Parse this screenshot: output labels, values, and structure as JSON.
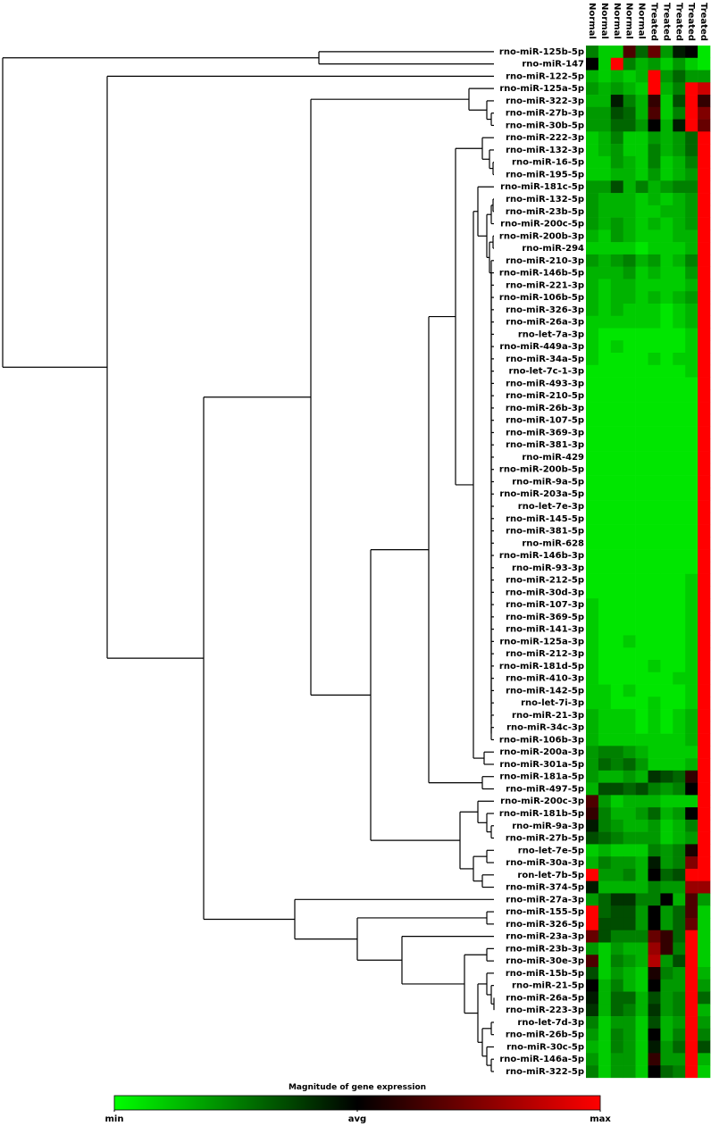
{
  "chart_data": {
    "type": "heatmap",
    "x_categories": [
      "Normal",
      "Normal",
      "Normal",
      "Normal",
      "Normal",
      "Treated",
      "Treated",
      "Treated",
      "Treated",
      "Treated"
    ],
    "y_categories": [
      "rno-miR-125b-5p",
      "rno-miR-147",
      "rno-miR-122-5p",
      "rno-miR-125a-5p",
      "rno-miR-322-3p",
      "rno-miR-27b-3p",
      "rno-miR-30b-5p",
      "rno-miR-222-3p",
      "rno-miR-132-3p",
      "rno-miR-16-5p",
      "rno-miR-195-5p",
      "rno-miR-181c-5p",
      "rno-miR-132-5p",
      "rno-miR-23b-5p",
      "rno-miR-200c-5p",
      "rno-miR-200b-3p",
      "rno-miR-294",
      "rno-miR-210-3p",
      "rno-miR-146b-5p",
      "rno-miR-221-3p",
      "rno-miR-106b-5p",
      "rno-miR-326-3p",
      "rno-miR-26a-3p",
      "rno-let-7a-3p",
      "rno-miR-449a-3p",
      "rno-miR-34a-5p",
      "rno-let-7c-1-3p",
      "rno-miR-493-3p",
      "rno-miR-210-5p",
      "rno-miR-26b-3p",
      "rno-miR-107-5p",
      "rno-miR-369-3p",
      "rno-miR-381-3p",
      "rno-miR-429",
      "rno-miR-200b-5p",
      "rno-miR-9a-5p",
      "rno-miR-203a-5p",
      "rno-let-7e-3p",
      "rno-miR-145-5p",
      "rno-miR-381-5p",
      "rno-miR-628",
      "rno-miR-146b-3p",
      "rno-miR-93-3p",
      "rno-miR-212-5p",
      "rno-miR-30d-3p",
      "rno-miR-107-3p",
      "rno-miR-369-5p",
      "rno-miR-141-3p",
      "rno-miR-125a-3p",
      "rno-miR-212-3p",
      "rno-miR-181d-5p",
      "rno-miR-410-3p",
      "rno-miR-142-5p",
      "rno-let-7i-3p",
      "rno-miR-21-3p",
      "rno-miR-34c-3p",
      "rno-miR-106b-3p",
      "rno-miR-200a-3p",
      "rno-miR-301a-5p",
      "rno-miR-181a-5p",
      "rno-miR-497-5p",
      "rno-miR-200c-3p",
      "rno-miR-181b-5p",
      "rno-miR-9a-3p",
      "rno-miR-27b-5p",
      "rno-let-7e-5p",
      "rno-miR-30a-3p",
      "ron-let-7b-5p",
      "rno-miR-374-5p",
      "rno-miR-27a-3p",
      "rno-miR-155-5p",
      "rno-miR-326-5p",
      "rno-miR-23a-3p",
      "rno-miR-23b-3p",
      "rno-miR-30e-3p",
      "rno-miR-15b-5p",
      "rno-miR-21-5p",
      "rno-miR-26a-5p",
      "rno-miR-223-3p",
      "rno-let-7d-3p",
      "rno-miR-26b-5p",
      "rno-miR-30c-5p",
      "rno-miR-146a-5p",
      "rno-miR-322-5p"
    ],
    "values": [
      [
        -0.5,
        -0.8,
        -0.8,
        0.3,
        -0.4,
        0.4,
        -0.6,
        -0.1,
        0,
        -0.9
      ],
      [
        0,
        -0.8,
        1,
        -0.5,
        -0.7,
        -0.6,
        -0.8,
        -0.6,
        -0.8,
        -0.9
      ],
      [
        -0.7,
        -0.8,
        -0.7,
        -0.8,
        -0.7,
        1,
        -0.6,
        -0.4,
        -0.6,
        -0.6
      ],
      [
        -0.6,
        -0.7,
        -0.6,
        -0.7,
        -0.8,
        1,
        -0.7,
        -0.5,
        1,
        0.8
      ],
      [
        -0.7,
        -0.7,
        -0.1,
        -0.5,
        -0.7,
        0.2,
        -0.8,
        -0.3,
        1,
        0.2
      ],
      [
        -0.6,
        -0.6,
        -0.3,
        -0.4,
        -0.7,
        0.3,
        -0.8,
        -0.5,
        1,
        0.5
      ],
      [
        -0.6,
        -0.6,
        -0.4,
        -0.4,
        -0.6,
        0,
        -0.7,
        -0.1,
        1,
        0.4
      ],
      [
        -0.8,
        -0.7,
        -0.5,
        -0.8,
        -0.8,
        -0.6,
        -0.7,
        -0.6,
        -0.4,
        1
      ],
      [
        -0.8,
        -0.7,
        -0.6,
        -0.8,
        -0.8,
        -0.5,
        -0.7,
        -0.6,
        -0.4,
        1
      ],
      [
        -0.8,
        -0.8,
        -0.6,
        -0.7,
        -0.8,
        -0.5,
        -0.8,
        -0.7,
        -0.5,
        1
      ],
      [
        -0.8,
        -0.8,
        -0.7,
        -0.7,
        -0.8,
        -0.6,
        -0.8,
        -0.7,
        -0.6,
        1
      ],
      [
        -0.6,
        -0.6,
        -0.3,
        -0.7,
        -0.5,
        -0.7,
        -0.6,
        -0.5,
        -0.5,
        1
      ],
      [
        -0.6,
        -0.7,
        -0.7,
        -0.7,
        -0.8,
        -0.7,
        -0.8,
        -0.7,
        -0.6,
        1
      ],
      [
        -0.6,
        -0.7,
        -0.7,
        -0.7,
        -0.8,
        -0.8,
        -0.7,
        -0.7,
        -0.6,
        1
      ],
      [
        -0.6,
        -0.7,
        -0.6,
        -0.7,
        -0.8,
        -0.7,
        -0.8,
        -0.7,
        -0.6,
        1
      ],
      [
        -0.7,
        -0.8,
        -0.6,
        -0.7,
        -0.8,
        -0.8,
        -0.8,
        -0.7,
        -0.7,
        1
      ],
      [
        -0.8,
        -0.8,
        -0.8,
        -0.8,
        -0.9,
        -0.8,
        -0.8,
        -0.8,
        -0.7,
        1
      ],
      [
        -0.6,
        -0.7,
        -0.6,
        -0.5,
        -0.7,
        -0.6,
        -0.8,
        -0.7,
        -0.5,
        1
      ],
      [
        -0.7,
        -0.7,
        -0.7,
        -0.6,
        -0.8,
        -0.7,
        -0.8,
        -0.8,
        -0.6,
        1
      ],
      [
        -0.7,
        -0.8,
        -0.7,
        -0.7,
        -0.8,
        -0.8,
        -0.8,
        -0.8,
        -0.7,
        1
      ],
      [
        -0.7,
        -0.8,
        -0.7,
        -0.7,
        -0.8,
        -0.7,
        -0.8,
        -0.7,
        -0.6,
        1
      ],
      [
        -0.7,
        -0.8,
        -0.7,
        -0.8,
        -0.8,
        -0.8,
        -0.9,
        -0.8,
        -0.7,
        1
      ],
      [
        -0.8,
        -0.8,
        -0.8,
        -0.8,
        -0.8,
        -0.8,
        -0.9,
        -0.8,
        -0.7,
        1
      ],
      [
        -0.8,
        -0.9,
        -0.9,
        -0.9,
        -0.9,
        -0.9,
        -0.9,
        -0.9,
        -0.8,
        1
      ],
      [
        -0.8,
        -0.9,
        -0.8,
        -0.9,
        -0.9,
        -0.9,
        -0.9,
        -0.9,
        -0.8,
        1
      ],
      [
        -0.8,
        -0.9,
        -0.9,
        -0.9,
        -0.9,
        -0.8,
        -0.9,
        -0.8,
        -0.8,
        1
      ],
      [
        -0.9,
        -0.9,
        -0.9,
        -0.9,
        -0.9,
        -0.9,
        -0.9,
        -0.9,
        -0.8,
        1
      ],
      [
        -0.9,
        -0.9,
        -0.9,
        -0.9,
        -0.9,
        -0.9,
        -0.9,
        -0.9,
        -0.9,
        1
      ],
      [
        -0.9,
        -0.9,
        -0.9,
        -0.9,
        -0.9,
        -0.9,
        -0.9,
        -0.9,
        -0.9,
        1
      ],
      [
        -0.9,
        -0.9,
        -0.9,
        -0.9,
        -0.9,
        -0.9,
        -0.9,
        -0.9,
        -0.9,
        1
      ],
      [
        -0.9,
        -0.9,
        -0.9,
        -0.9,
        -0.9,
        -0.9,
        -0.9,
        -0.9,
        -0.9,
        1
      ],
      [
        -0.9,
        -0.9,
        -0.9,
        -0.9,
        -0.9,
        -0.9,
        -0.9,
        -0.9,
        -0.9,
        1
      ],
      [
        -0.9,
        -0.9,
        -0.9,
        -0.9,
        -0.9,
        -0.9,
        -0.9,
        -0.9,
        -0.9,
        1
      ],
      [
        -0.9,
        -0.9,
        -0.9,
        -0.9,
        -0.9,
        -0.9,
        -0.9,
        -0.9,
        -0.9,
        1
      ],
      [
        -0.9,
        -0.9,
        -0.9,
        -0.9,
        -0.9,
        -0.9,
        -0.9,
        -0.9,
        -0.9,
        1
      ],
      [
        -0.9,
        -0.9,
        -0.9,
        -0.9,
        -0.9,
        -0.9,
        -0.9,
        -0.9,
        -0.9,
        1
      ],
      [
        -0.9,
        -0.9,
        -0.9,
        -0.9,
        -0.9,
        -0.9,
        -0.9,
        -0.9,
        -0.9,
        1
      ],
      [
        -0.9,
        -0.9,
        -0.9,
        -0.9,
        -0.9,
        -0.9,
        -0.9,
        -0.9,
        -0.9,
        1
      ],
      [
        -0.9,
        -0.9,
        -0.9,
        -0.9,
        -0.9,
        -0.9,
        -0.9,
        -0.9,
        -0.9,
        1
      ],
      [
        -0.9,
        -0.9,
        -0.9,
        -0.9,
        -0.9,
        -0.9,
        -0.9,
        -0.9,
        -0.9,
        1
      ],
      [
        -0.9,
        -0.9,
        -0.9,
        -0.9,
        -0.9,
        -0.9,
        -0.9,
        -0.9,
        -0.9,
        1
      ],
      [
        -0.9,
        -0.9,
        -0.9,
        -0.9,
        -0.9,
        -0.9,
        -0.9,
        -0.9,
        -0.9,
        1
      ],
      [
        -0.9,
        -0.9,
        -0.9,
        -0.9,
        -0.9,
        -0.9,
        -0.9,
        -0.9,
        -0.9,
        1
      ],
      [
        -0.9,
        -0.9,
        -0.9,
        -0.9,
        -0.9,
        -0.9,
        -0.9,
        -0.9,
        -0.8,
        1
      ],
      [
        -0.9,
        -0.9,
        -0.9,
        -0.9,
        -0.9,
        -0.9,
        -0.9,
        -0.9,
        -0.8,
        1
      ],
      [
        -0.8,
        -0.9,
        -0.9,
        -0.9,
        -0.9,
        -0.9,
        -0.9,
        -0.9,
        -0.8,
        1
      ],
      [
        -0.8,
        -0.9,
        -0.9,
        -0.9,
        -0.9,
        -0.9,
        -0.9,
        -0.9,
        -0.8,
        1
      ],
      [
        -0.8,
        -0.9,
        -0.9,
        -0.9,
        -0.9,
        -0.9,
        -0.9,
        -0.9,
        -0.8,
        1
      ],
      [
        -0.8,
        -0.9,
        -0.9,
        -0.8,
        -0.9,
        -0.9,
        -0.9,
        -0.9,
        -0.8,
        1
      ],
      [
        -0.8,
        -0.9,
        -0.9,
        -0.9,
        -0.9,
        -0.9,
        -0.9,
        -0.9,
        -0.8,
        1
      ],
      [
        -0.8,
        -0.9,
        -0.9,
        -0.9,
        -0.9,
        -0.8,
        -0.9,
        -0.9,
        -0.8,
        1
      ],
      [
        -0.8,
        -0.9,
        -0.9,
        -0.9,
        -0.9,
        -0.9,
        -0.9,
        -0.8,
        -0.8,
        1
      ],
      [
        -0.8,
        -0.8,
        -0.9,
        -0.8,
        -0.9,
        -0.9,
        -0.9,
        -0.9,
        -0.8,
        1
      ],
      [
        -0.8,
        -0.8,
        -0.9,
        -0.9,
        -0.9,
        -0.8,
        -0.9,
        -0.9,
        -0.8,
        1
      ],
      [
        -0.7,
        -0.8,
        -0.8,
        -0.8,
        -0.9,
        -0.8,
        -0.9,
        -0.8,
        -0.7,
        1
      ],
      [
        -0.7,
        -0.8,
        -0.8,
        -0.8,
        -0.9,
        -0.8,
        -0.9,
        -0.8,
        -0.7,
        1
      ],
      [
        -0.7,
        -0.8,
        -0.8,
        -0.8,
        -0.8,
        -0.8,
        -0.8,
        -0.8,
        -0.7,
        1
      ],
      [
        -0.6,
        -0.5,
        -0.5,
        -0.6,
        -0.7,
        -0.8,
        -0.8,
        -0.8,
        -0.8,
        1
      ],
      [
        -0.6,
        -0.4,
        -0.5,
        -0.4,
        -0.6,
        -0.8,
        -0.8,
        -0.8,
        -0.7,
        1
      ],
      [
        -0.6,
        -0.7,
        -0.7,
        -0.6,
        -0.7,
        -0.2,
        -0.3,
        -0.4,
        0.2,
        1
      ],
      [
        -0.7,
        -0.3,
        -0.3,
        -0.4,
        -0.3,
        -0.5,
        -0.6,
        -0.5,
        0,
        1
      ],
      [
        0.3,
        -0.6,
        -0.8,
        -0.7,
        -0.7,
        -0.7,
        -0.8,
        -0.8,
        -0.8,
        1
      ],
      [
        0.2,
        -0.5,
        -0.7,
        -0.7,
        -0.6,
        -0.4,
        -0.7,
        -0.6,
        0,
        1
      ],
      [
        -0.1,
        -0.5,
        -0.6,
        -0.7,
        -0.7,
        -0.6,
        -0.8,
        -0.7,
        -0.5,
        1
      ],
      [
        -0.3,
        -0.4,
        -0.5,
        -0.6,
        -0.6,
        -0.6,
        -0.8,
        -0.7,
        -0.6,
        1
      ],
      [
        -0.8,
        -0.7,
        -0.8,
        -0.8,
        -0.8,
        -0.5,
        -0.6,
        -0.5,
        0.1,
        1
      ],
      [
        -0.7,
        -0.5,
        -0.6,
        -0.6,
        -0.7,
        -0.1,
        -0.6,
        -0.5,
        0.5,
        1
      ],
      [
        1,
        -0.6,
        -0.6,
        -0.5,
        -0.7,
        0,
        -0.4,
        -0.3,
        1,
        1
      ],
      [
        -0.1,
        -0.7,
        -0.7,
        -0.7,
        -0.7,
        -0.5,
        -0.6,
        -0.6,
        0.6,
        0.6
      ],
      [
        -0.6,
        -0.4,
        -0.2,
        -0.2,
        -0.5,
        -0.5,
        0,
        -0.7,
        0.3,
        -0.6
      ],
      [
        1,
        -0.4,
        -0.3,
        -0.3,
        -0.6,
        0,
        -0.6,
        -0.4,
        0.3,
        -0.8
      ],
      [
        1,
        -0.3,
        -0.3,
        -0.3,
        -0.6,
        0,
        -0.6,
        -0.4,
        0.4,
        -0.8
      ],
      [
        0.4,
        -0.3,
        -0.5,
        -0.5,
        -0.5,
        0.4,
        0.2,
        -0.4,
        1,
        -0.8
      ],
      [
        -0.6,
        -0.8,
        -0.6,
        -0.7,
        -0.7,
        0.6,
        0.2,
        -0.5,
        1,
        -0.8
      ],
      [
        0.3,
        -0.8,
        -0.5,
        -0.6,
        -0.7,
        0.7,
        -0.6,
        -0.3,
        1,
        -0.8
      ],
      [
        -0.3,
        -0.8,
        -0.6,
        -0.7,
        -0.8,
        0.1,
        -0.5,
        -0.6,
        1,
        -0.7
      ],
      [
        0,
        -0.7,
        -0.5,
        -0.7,
        -0.8,
        0,
        -0.6,
        -0.6,
        1,
        -0.6
      ],
      [
        -0.1,
        -0.7,
        -0.4,
        -0.4,
        -0.7,
        -0.3,
        -0.6,
        -0.5,
        1,
        -0.4
      ],
      [
        -0.2,
        -0.7,
        -0.4,
        -0.5,
        -0.7,
        -0.2,
        -0.6,
        -0.5,
        1,
        -0.7
      ],
      [
        -0.5,
        -0.8,
        -0.6,
        -0.6,
        -0.8,
        -0.3,
        -0.7,
        -0.6,
        1,
        -0.6
      ],
      [
        -0.6,
        -0.8,
        -0.5,
        -0.6,
        -0.8,
        0,
        -0.7,
        -0.5,
        1,
        -0.5
      ],
      [
        -0.7,
        -0.8,
        -0.5,
        -0.6,
        -0.8,
        -0.1,
        -0.6,
        -0.4,
        1,
        -0.3
      ],
      [
        -0.6,
        -0.8,
        -0.6,
        -0.6,
        -0.8,
        0.2,
        -0.6,
        -0.6,
        1,
        -0.7
      ],
      [
        -0.5,
        -0.8,
        -0.6,
        -0.6,
        -0.8,
        0,
        -0.4,
        -0.5,
        1,
        -0.8
      ]
    ],
    "colors": [
      "#00ff00",
      "#000000",
      "#ff0000"
    ],
    "colorbar_title": "Magnitude of gene expression",
    "zlim": [
      -1,
      1
    ],
    "zticks": [
      {
        "value": -1,
        "label": "min"
      },
      {
        "value": 0,
        "label": "avg"
      },
      {
        "value": 1,
        "label": "max"
      }
    ]
  }
}
